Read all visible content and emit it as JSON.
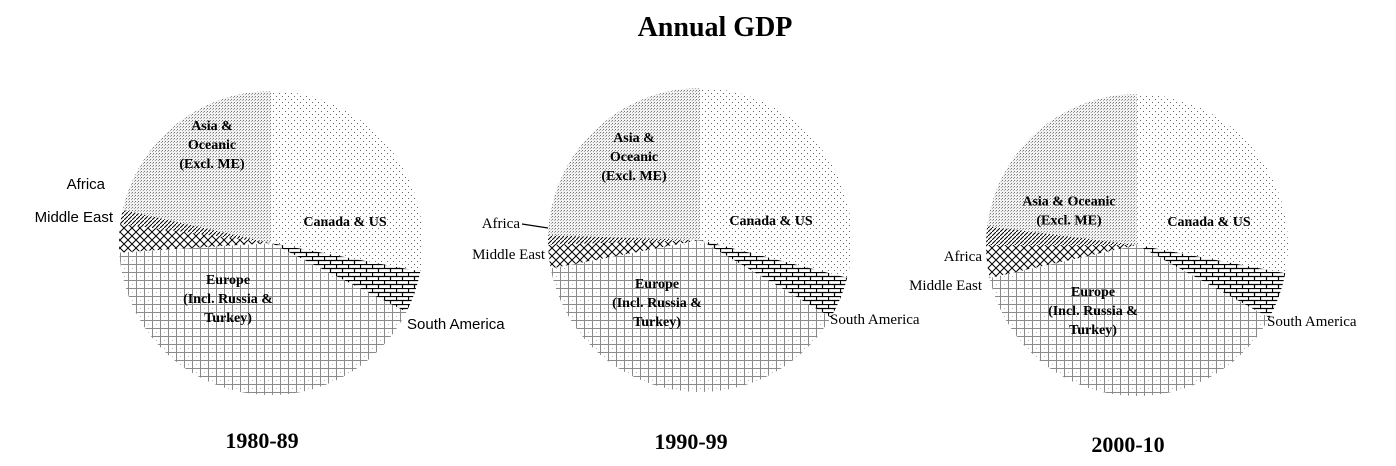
{
  "title": "Annual GDP",
  "colors": {
    "background": "#ffffff",
    "ink": "#000000"
  },
  "chart_data": [
    {
      "type": "pie",
      "period": "1980-89",
      "title": "Annual GDP",
      "slices": [
        {
          "key": "canada_us",
          "name": "Canada & US",
          "label": "Canada & US",
          "value": 28.0,
          "pattern": "light-dots"
        },
        {
          "key": "south_america",
          "name": "South America",
          "label": "South America",
          "value": 4.5,
          "pattern": "bricks"
        },
        {
          "key": "europe",
          "name": "Europe (Incl. Russia & Turkey)",
          "label": "Europe\n(Incl. Russia &\nTurkey)",
          "value": 41.5,
          "pattern": "grid"
        },
        {
          "key": "middle_east",
          "name": "Middle East",
          "label": "Middle East",
          "value": 3.0,
          "pattern": "crosshatch"
        },
        {
          "key": "africa",
          "name": "Africa",
          "label": "Africa",
          "value": 1.5,
          "pattern": "diagonal"
        },
        {
          "key": "asia",
          "name": "Asia & Oceanic (Excl. ME)",
          "label": "Asia &\nOceanic\n(Excl. ME)",
          "value": 21.5,
          "pattern": "dense-dots"
        }
      ]
    },
    {
      "type": "pie",
      "period": "1990-99",
      "title": "Annual GDP",
      "slices": [
        {
          "key": "canada_us",
          "name": "Canada & US",
          "label": "Canada & US",
          "value": 29.0,
          "pattern": "light-dots"
        },
        {
          "key": "south_america",
          "name": "South America",
          "label": "South America",
          "value": 4.5,
          "pattern": "bricks"
        },
        {
          "key": "europe",
          "name": "Europe (Incl. Russia & Turkey)",
          "label": "Europe\n(Incl. Russia &\nTurkey)",
          "value": 38.5,
          "pattern": "grid"
        },
        {
          "key": "middle_east",
          "name": "Middle East",
          "label": "Middle East",
          "value": 2.5,
          "pattern": "crosshatch"
        },
        {
          "key": "africa",
          "name": "Africa",
          "label": "Africa",
          "value": 1.0,
          "pattern": "diagonal"
        },
        {
          "key": "asia",
          "name": "Asia & Oceanic (Excl. ME)",
          "label": "Asia &\nOceanic\n(Excl. ME)",
          "value": 24.5,
          "pattern": "dense-dots"
        }
      ]
    },
    {
      "type": "pie",
      "period": "2000-10",
      "title": "Annual GDP",
      "slices": [
        {
          "key": "canada_us",
          "name": "Canada & US",
          "label": "Canada & US",
          "value": 28.0,
          "pattern": "light-dots"
        },
        {
          "key": "south_america",
          "name": "South America",
          "label": "South America",
          "value": 5.0,
          "pattern": "bricks"
        },
        {
          "key": "europe",
          "name": "Europe (Incl. Russia & Turkey)",
          "label": "Europe\n(Incl. Russia &\nTurkey)",
          "value": 38.5,
          "pattern": "grid"
        },
        {
          "key": "middle_east",
          "name": "Middle East",
          "label": "Middle East",
          "value": 3.5,
          "pattern": "crosshatch"
        },
        {
          "key": "africa",
          "name": "Africa",
          "label": "Africa",
          "value": 2.0,
          "pattern": "diagonal"
        },
        {
          "key": "asia",
          "name": "Asia & Oceanic (Excl. ME)",
          "label": "Asia & Oceanic\n(Excl. ME)",
          "value": 23.0,
          "pattern": "dense-dots"
        }
      ]
    }
  ]
}
